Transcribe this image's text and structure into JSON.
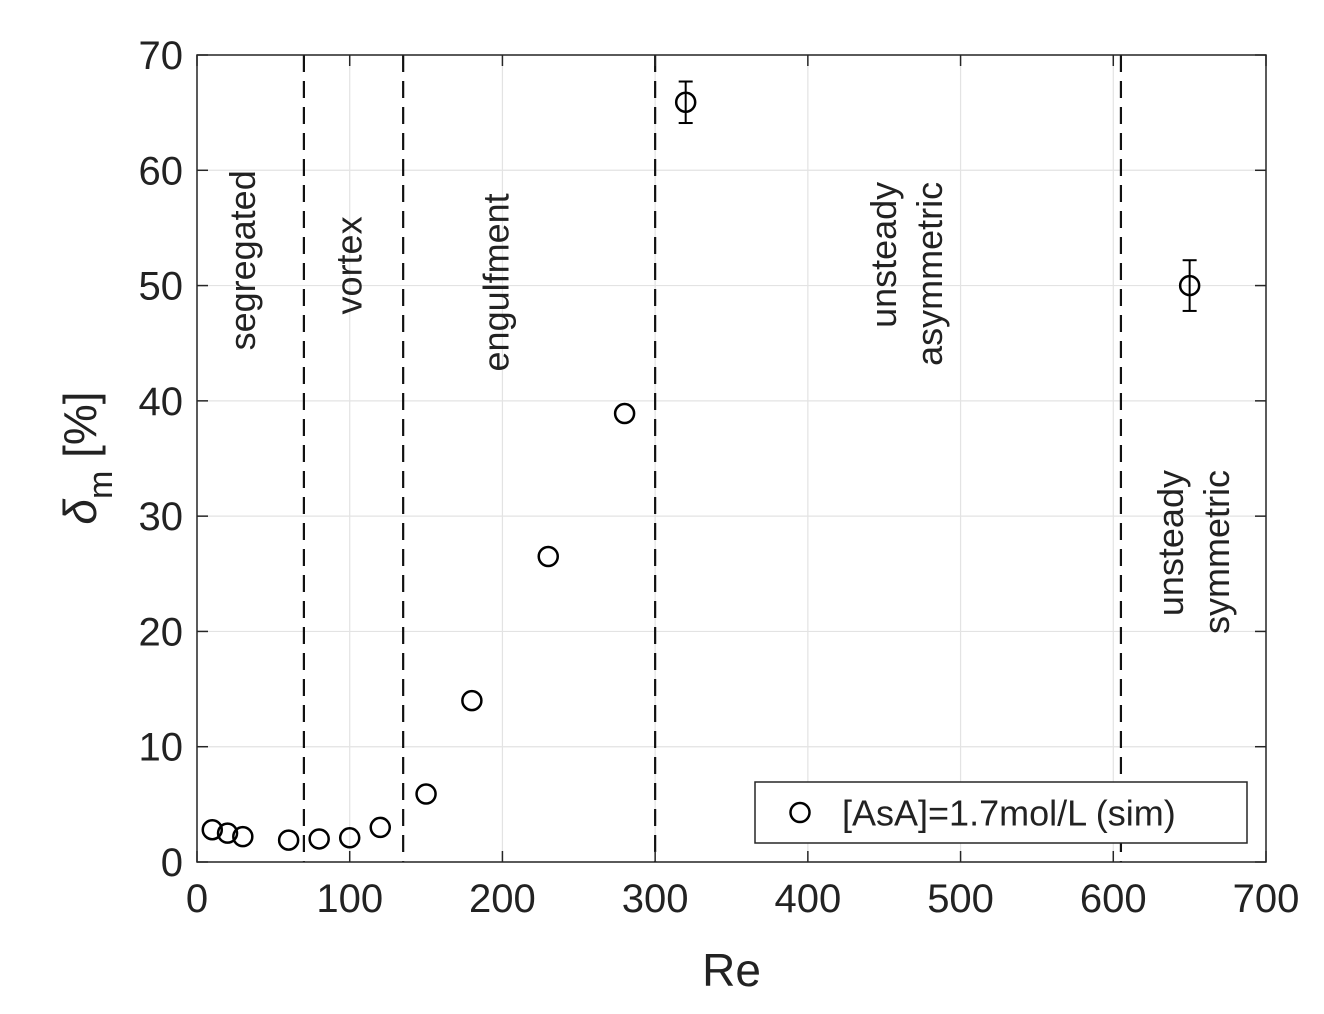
{
  "chart_data": {
    "type": "scatter",
    "title": "",
    "xlabel": "Re",
    "ylabel": {
      "symbol": "δ",
      "subscript": "m",
      "unit": "[%]"
    },
    "xlim": [
      0,
      700
    ],
    "ylim": [
      0,
      70
    ],
    "xticks": [
      "0",
      "100",
      "200",
      "300",
      "400",
      "500",
      "600",
      "700"
    ],
    "yticks": [
      "0",
      "10",
      "20",
      "30",
      "40",
      "50",
      "60",
      "70"
    ],
    "grid": true,
    "legend_position": "bottom-right",
    "series": [
      {
        "name": "[AsA]=1.7mol/L (sim)",
        "marker": "open-circle",
        "color": "#000000",
        "points": [
          {
            "x": 10,
            "y": 2.8
          },
          {
            "x": 20,
            "y": 2.5
          },
          {
            "x": 30,
            "y": 2.2
          },
          {
            "x": 60,
            "y": 1.9
          },
          {
            "x": 80,
            "y": 2.0
          },
          {
            "x": 100,
            "y": 2.1
          },
          {
            "x": 120,
            "y": 3.0
          },
          {
            "x": 150,
            "y": 5.9
          },
          {
            "x": 180,
            "y": 14.0
          },
          {
            "x": 230,
            "y": 26.5
          },
          {
            "x": 280,
            "y": 38.9
          },
          {
            "x": 320,
            "y": 65.9,
            "error": 1.8
          },
          {
            "x": 650,
            "y": 50.0,
            "error": 2.2
          }
        ]
      }
    ],
    "boundaries": [
      70,
      135,
      300,
      605
    ],
    "regions": [
      {
        "lines": [
          "segregated"
        ],
        "x": 30,
        "y_top": 60
      },
      {
        "lines": [
          "vortex"
        ],
        "x": 100,
        "y_top": 56
      },
      {
        "lines": [
          "engulfment"
        ],
        "x": 196,
        "y_top": 58
      },
      {
        "lines": [
          "unsteady",
          "asymmetric"
        ],
        "x": 465,
        "y_top": 59
      },
      {
        "lines": [
          "unsteady",
          "symmetric"
        ],
        "x": 653,
        "y_top": 34
      }
    ]
  }
}
